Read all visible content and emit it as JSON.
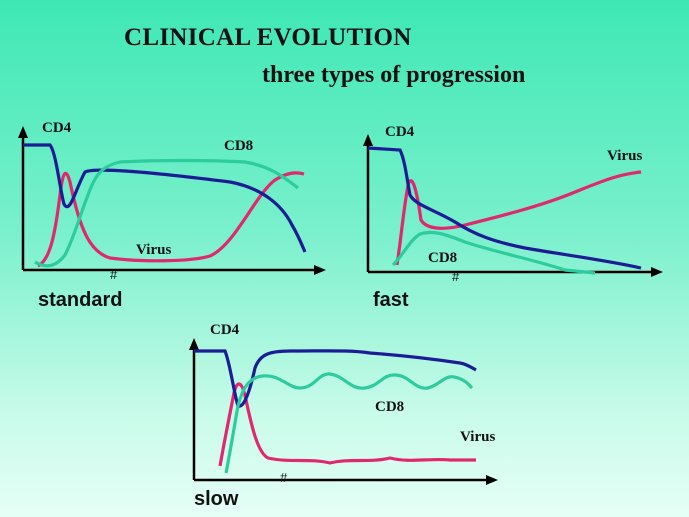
{
  "title": "CLINICAL EVOLUTION",
  "subtitle": "three types of progression",
  "colors": {
    "cd4": "#1c1c94",
    "cd8": "#2ccc9c",
    "virus": "#e0286e",
    "axis": "#000000"
  },
  "panels": [
    {
      "id": "standard",
      "name": "standard",
      "labels": {
        "cd4": "CD4",
        "cd8": "CD8",
        "virus": "Virus"
      },
      "axis_break": "#"
    },
    {
      "id": "fast",
      "name": "fast",
      "labels": {
        "cd4": "CD4",
        "cd8": "CD8",
        "virus": "Virus"
      },
      "axis_break": "#"
    },
    {
      "id": "slow",
      "name": "slow",
      "labels": {
        "cd4": "CD4",
        "cd8": "CD8",
        "virus": "Virus"
      },
      "axis_break": "#"
    }
  ]
}
